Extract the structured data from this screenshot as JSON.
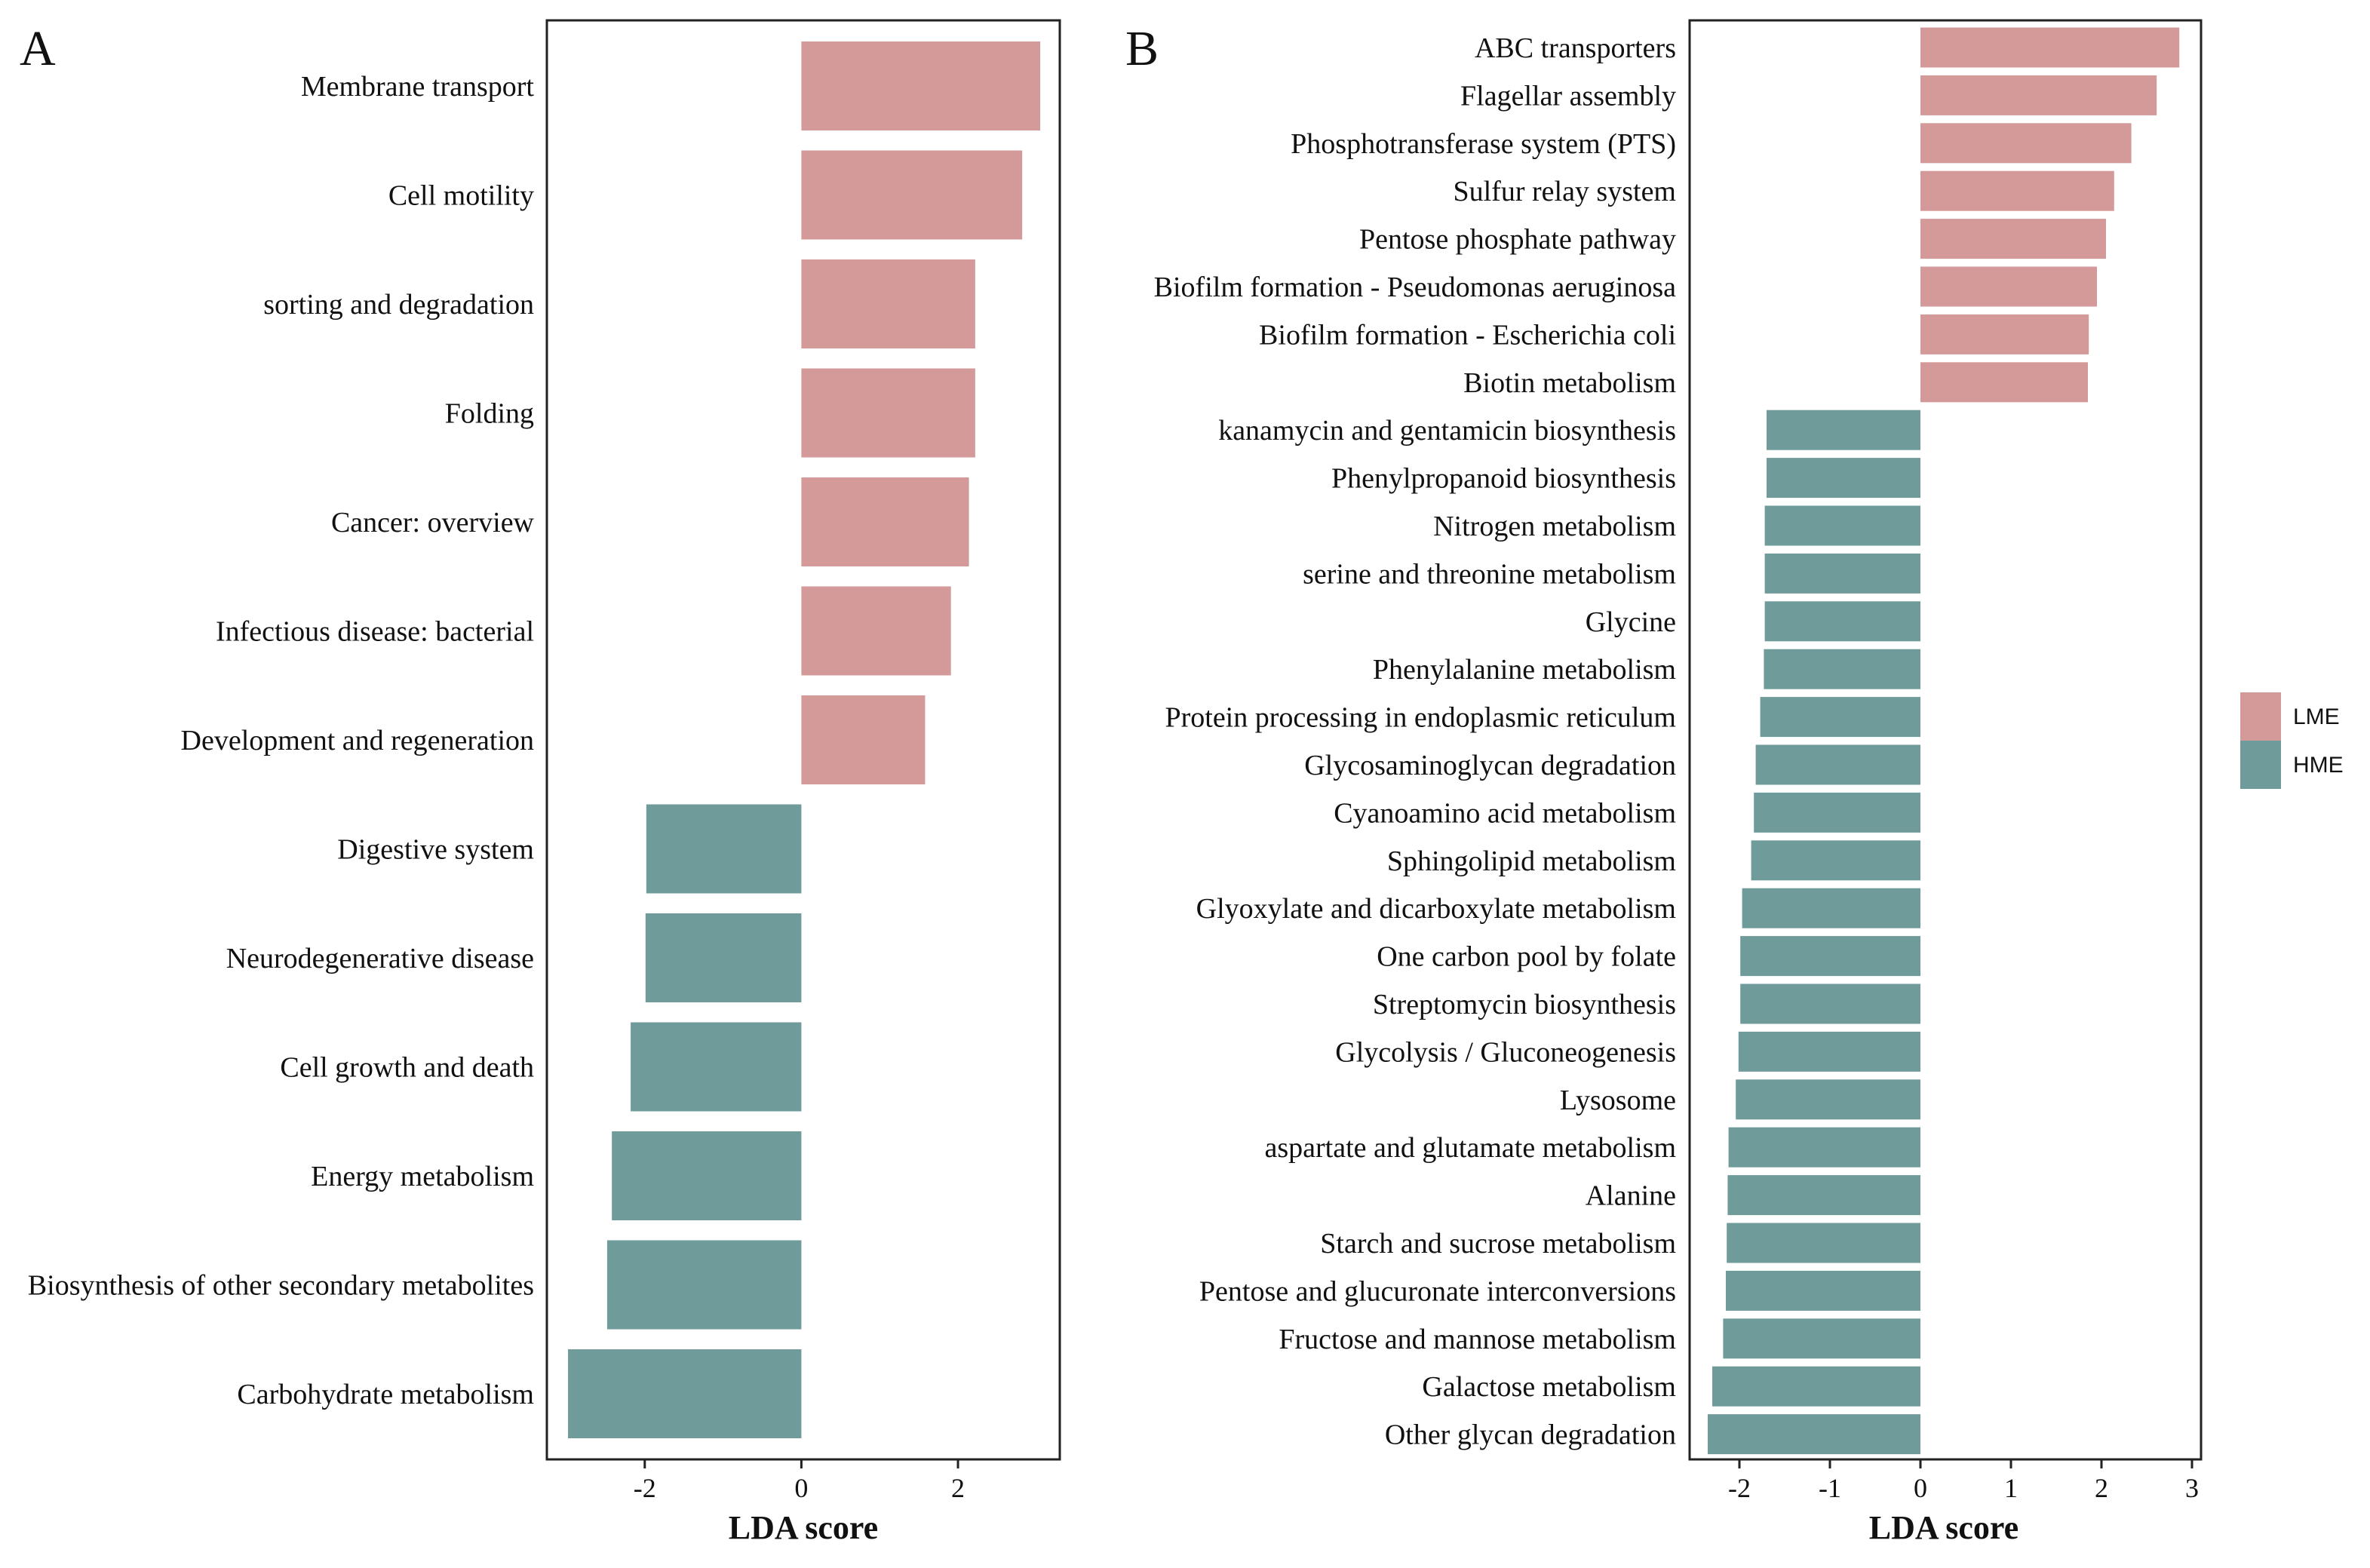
{
  "chart_data": [
    {
      "panel": "A",
      "type": "bar",
      "orientation": "horizontal",
      "xlabel": "LDA score",
      "xlim": [
        -3.25,
        3.3
      ],
      "xticks": [
        -2,
        0,
        2
      ],
      "xtick_labels": [
        "-2",
        "0",
        "2"
      ],
      "categories": [
        "Membrane transport",
        "Cell motility",
        "sorting and degradation",
        "Folding",
        "Cancer: overview",
        "Infectious disease: bacterial",
        "Development and regeneration",
        "Digestive system",
        "Neurodegenerative disease",
        "Cell growth and death",
        "Energy metabolism",
        "Biosynthesis of other secondary metabolites",
        "Carbohydrate metabolism"
      ],
      "values": [
        3.05,
        2.82,
        2.22,
        2.22,
        2.14,
        1.91,
        1.58,
        -1.98,
        -1.99,
        -2.18,
        -2.42,
        -2.48,
        -2.98
      ],
      "groups": [
        "LME",
        "LME",
        "LME",
        "LME",
        "LME",
        "LME",
        "LME",
        "HME",
        "HME",
        "HME",
        "HME",
        "HME",
        "HME"
      ]
    },
    {
      "panel": "B",
      "type": "bar",
      "orientation": "horizontal",
      "xlabel": "LDA score",
      "xlim": [
        -2.55,
        3.1
      ],
      "xticks": [
        -2,
        -1,
        0,
        1,
        2,
        3
      ],
      "xtick_labels": [
        "-2",
        "-1",
        "0",
        "1",
        "2",
        "3"
      ],
      "categories": [
        "ABC transporters",
        "Flagellar assembly",
        "Phosphotransferase system (PTS)",
        "Sulfur relay system",
        "Pentose phosphate pathway",
        "Biofilm formation - Pseudomonas aeruginosa",
        "Biofilm formation - Escherichia coli",
        "Biotin metabolism",
        "kanamycin and gentamicin biosynthesis",
        "Phenylpropanoid biosynthesis",
        "Nitrogen metabolism",
        "serine and threonine metabolism",
        "Glycine",
        "Phenylalanine metabolism",
        "Protein processing in endoplasmic reticulum",
        "Glycosaminoglycan degradation",
        "Cyanoamino acid metabolism",
        "Sphingolipid metabolism",
        "Glyoxylate and dicarboxylate metabolism",
        "One carbon pool by folate",
        "Streptomycin biosynthesis",
        "Glycolysis / Gluconeogenesis",
        "Lysosome",
        "aspartate and glutamate metabolism",
        "Alanine",
        "Starch and sucrose metabolism",
        "Pentose and glucuronate interconversions",
        "Fructose and mannose metabolism",
        "Galactose metabolism",
        "Other glycan degradation"
      ],
      "values": [
        2.86,
        2.61,
        2.33,
        2.14,
        2.05,
        1.95,
        1.86,
        1.85,
        -1.7,
        -1.7,
        -1.72,
        -1.72,
        -1.72,
        -1.73,
        -1.77,
        -1.82,
        -1.84,
        -1.87,
        -1.97,
        -1.99,
        -1.99,
        -2.01,
        -2.04,
        -2.12,
        -2.13,
        -2.14,
        -2.15,
        -2.18,
        -2.3,
        -2.35
      ],
      "groups": [
        "LME",
        "LME",
        "LME",
        "LME",
        "LME",
        "LME",
        "LME",
        "LME",
        "HME",
        "HME",
        "HME",
        "HME",
        "HME",
        "HME",
        "HME",
        "HME",
        "HME",
        "HME",
        "HME",
        "HME",
        "HME",
        "HME",
        "HME",
        "HME",
        "HME",
        "HME",
        "HME",
        "HME",
        "HME",
        "HME"
      ]
    }
  ],
  "legend": {
    "entries": [
      {
        "name": "LME",
        "color": "#d39a99"
      },
      {
        "name": "HME",
        "color": "#6f9b9b"
      }
    ],
    "position": "right"
  },
  "colors": {
    "LME": "#d39a99",
    "HME": "#6f9b9b"
  }
}
